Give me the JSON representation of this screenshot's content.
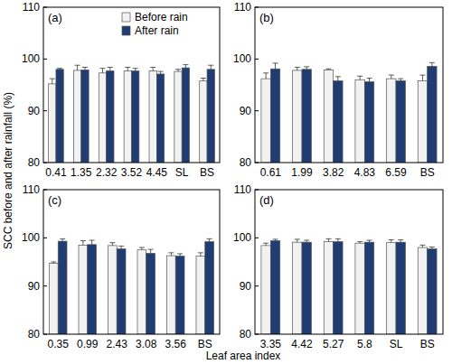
{
  "chart_data": [
    {
      "type": "bar",
      "title": "(a)",
      "y_label": "SCC before and after rainfall (%)",
      "x_label": "Leaf area index",
      "categories": [
        "0.41",
        "1.35",
        "2.32",
        "3.52",
        "4.45",
        "SL",
        "BS"
      ],
      "series": [
        {
          "name": "Before rain",
          "color": "#f2f2f2",
          "values": [
            95.2,
            97.8,
            97.3,
            97.7,
            97.7,
            97.6,
            95.8
          ],
          "errors": [
            1.0,
            1.0,
            0.9,
            0.7,
            0.7,
            0.4,
            0.5
          ]
        },
        {
          "name": "After rain",
          "color": "#1f3d73",
          "values": [
            98.0,
            97.9,
            97.7,
            97.7,
            97.1,
            98.3,
            98.0
          ],
          "errors": [
            0.2,
            0.5,
            0.7,
            0.5,
            0.5,
            0.6,
            0.8
          ]
        }
      ],
      "ylim": [
        80,
        110
      ],
      "yticks": [
        80,
        90,
        100,
        110
      ],
      "legend": "upper right"
    },
    {
      "type": "bar",
      "title": "(b)",
      "categories": [
        "0.61",
        "1.99",
        "3.82",
        "4.83",
        "6.59",
        "BS"
      ],
      "series": [
        {
          "name": "Before rain",
          "color": "#f2f2f2",
          "values": [
            96.2,
            97.8,
            97.9,
            96.0,
            96.2,
            95.8
          ],
          "errors": [
            1.1,
            0.6,
            0.2,
            0.7,
            0.7,
            1.1
          ]
        },
        {
          "name": "After rain",
          "color": "#1f3d73",
          "values": [
            98.1,
            98.0,
            95.8,
            95.6,
            95.8,
            98.6
          ],
          "errors": [
            1.1,
            0.5,
            0.8,
            0.7,
            0.4,
            0.7
          ]
        }
      ],
      "ylim": [
        80,
        110
      ],
      "yticks": [
        80,
        90,
        100,
        110
      ]
    },
    {
      "type": "bar",
      "title": "(c)",
      "categories": [
        "0.35",
        "0.99",
        "2.43",
        "3.08",
        "3.56",
        "BS"
      ],
      "series": [
        {
          "name": "Before rain",
          "color": "#f2f2f2",
          "values": [
            94.7,
            98.5,
            98.4,
            97.5,
            96.3,
            96.2
          ],
          "errors": [
            0.3,
            0.9,
            0.6,
            0.5,
            0.6,
            0.7
          ]
        },
        {
          "name": "After rain",
          "color": "#1f3d73",
          "values": [
            99.3,
            98.6,
            97.7,
            96.8,
            96.2,
            99.2
          ],
          "errors": [
            0.5,
            0.9,
            0.6,
            0.8,
            0.5,
            0.6
          ]
        }
      ],
      "ylim": [
        80,
        110
      ],
      "yticks": [
        80,
        90,
        100,
        110
      ]
    },
    {
      "type": "bar",
      "title": "(d)",
      "categories": [
        "3.35",
        "4.42",
        "5.27",
        "5.8",
        "SL",
        "BS"
      ],
      "series": [
        {
          "name": "Before rain",
          "color": "#f2f2f2",
          "values": [
            98.4,
            99.1,
            99.2,
            98.9,
            99.0,
            98.0
          ],
          "errors": [
            0.5,
            0.6,
            0.6,
            0.3,
            0.6,
            0.5
          ]
        },
        {
          "name": "After rain",
          "color": "#1f3d73",
          "values": [
            99.4,
            99.1,
            99.2,
            99.1,
            99.1,
            97.7
          ],
          "errors": [
            0.3,
            0.4,
            0.6,
            0.4,
            0.5,
            0.4
          ]
        }
      ],
      "ylim": [
        80,
        110
      ],
      "yticks": [
        80,
        90,
        100,
        110
      ]
    }
  ]
}
